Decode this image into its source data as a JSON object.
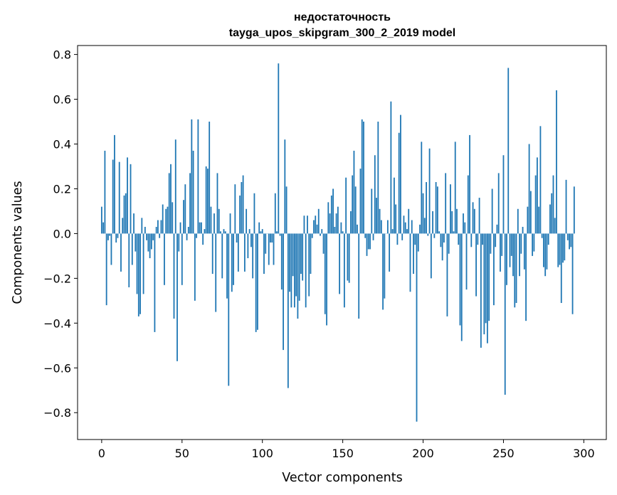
{
  "chart_data": {
    "type": "bar",
    "title_line1": "недостаточность",
    "title_line2": "tayga_upos_skipgram_300_2_2019 model",
    "xlabel": "Vector components",
    "ylabel": "Components values",
    "xlim": [
      -15,
      314
    ],
    "ylim": [
      -0.92,
      0.84
    ],
    "xticks": [
      0,
      50,
      100,
      150,
      200,
      250,
      300
    ],
    "xtick_labels": [
      "0",
      "50",
      "100",
      "150",
      "200",
      "250",
      "300"
    ],
    "yticks": [
      0.8,
      0.6,
      0.4,
      0.2,
      0.0,
      -0.2,
      -0.4,
      -0.6,
      -0.8
    ],
    "ytick_labels": [
      "0.8",
      "0.6",
      "0.4",
      "0.2",
      "0.0",
      "−0.2",
      "−0.4",
      "−0.6",
      "−0.8"
    ],
    "bar_color": "#1f77b4",
    "values": [
      0.12,
      0.05,
      0.37,
      -0.32,
      -0.03,
      -0.01,
      -0.14,
      0.33,
      0.44,
      -0.04,
      -0.02,
      0.32,
      -0.17,
      0.07,
      0.17,
      0.18,
      0.34,
      -0.24,
      0.31,
      -0.14,
      0.09,
      -0.08,
      -0.27,
      -0.37,
      -0.36,
      0.07,
      -0.27,
      0.03,
      -0.03,
      -0.08,
      -0.11,
      -0.07,
      -0.03,
      -0.44,
      0.03,
      0.06,
      -0.02,
      0.06,
      0.13,
      -0.23,
      0.11,
      0.12,
      0.27,
      0.31,
      0.14,
      -0.38,
      0.42,
      -0.57,
      -0.08,
      0.05,
      -0.23,
      0.15,
      0.22,
      -0.03,
      0.03,
      0.27,
      0.51,
      0.37,
      -0.3,
      -0.02,
      0.51,
      0.05,
      0.05,
      -0.05,
      0.02,
      0.3,
      0.29,
      0.5,
      0.12,
      -0.18,
      0.09,
      -0.35,
      0.27,
      0.11,
      0.01,
      -0.2,
      0.02,
      0.01,
      -0.29,
      -0.68,
      0.09,
      -0.26,
      -0.23,
      0.22,
      -0.04,
      -0.17,
      0.17,
      0.23,
      0.26,
      -0.17,
      0.11,
      -0.11,
      0.02,
      -0.06,
      -0.2,
      0.18,
      -0.44,
      -0.43,
      0.05,
      0.01,
      0.02,
      -0.18,
      -0.09,
      0.0,
      -0.14,
      -0.04,
      -0.04,
      -0.14,
      0.18,
      0.01,
      0.76,
      -0.01,
      -0.25,
      -0.52,
      0.42,
      0.21,
      -0.69,
      -0.26,
      -0.33,
      -0.19,
      -0.33,
      -0.28,
      -0.38,
      -0.3,
      -0.18,
      -0.21,
      0.08,
      -0.33,
      0.08,
      -0.28,
      -0.18,
      -0.02,
      0.06,
      0.08,
      0.04,
      0.11,
      -0.01,
      0.02,
      -0.09,
      -0.36,
      -0.41,
      0.14,
      0.09,
      0.17,
      0.2,
      0.03,
      0.09,
      0.12,
      -0.27,
      0.05,
      0.01,
      -0.33,
      0.25,
      -0.21,
      -0.22,
      0.1,
      0.26,
      0.37,
      0.21,
      0.04,
      -0.38,
      0.29,
      0.51,
      0.5,
      -0.02,
      -0.1,
      -0.07,
      -0.07,
      0.2,
      -0.03,
      0.35,
      0.16,
      0.5,
      0.11,
      0.06,
      -0.34,
      -0.29,
      0.0,
      0.06,
      -0.17,
      0.59,
      0.02,
      0.25,
      0.13,
      -0.05,
      0.45,
      0.53,
      -0.03,
      0.08,
      0.05,
      0.02,
      0.11,
      -0.26,
      0.06,
      -0.18,
      -0.05,
      -0.84,
      -0.08,
      0.04,
      0.41,
      0.18,
      0.07,
      0.23,
      -0.01,
      0.38,
      -0.2,
      0.1,
      -0.02,
      0.23,
      0.21,
      0.01,
      -0.06,
      -0.12,
      -0.04,
      0.27,
      -0.37,
      -0.09,
      0.22,
      0.1,
      0.01,
      0.41,
      0.11,
      -0.05,
      -0.41,
      -0.48,
      0.09,
      0.05,
      -0.25,
      0.26,
      0.44,
      -0.06,
      0.14,
      0.11,
      -0.28,
      -0.05,
      0.16,
      -0.51,
      -0.05,
      -0.45,
      -0.4,
      -0.49,
      -0.39,
      -0.09,
      0.2,
      -0.32,
      -0.06,
      0.04,
      0.27,
      -0.17,
      -0.1,
      0.35,
      -0.72,
      -0.23,
      0.74,
      -0.15,
      -0.1,
      -0.19,
      -0.33,
      -0.31,
      0.11,
      -0.19,
      -0.09,
      0.03,
      -0.16,
      -0.39,
      0.12,
      0.4,
      0.19,
      -0.1,
      -0.08,
      0.26,
      0.34,
      0.12,
      0.48,
      -0.02,
      -0.15,
      -0.19,
      -0.16,
      -0.05,
      0.13,
      0.18,
      0.26,
      0.07,
      0.64,
      -0.15,
      -0.14,
      -0.31,
      -0.13,
      -0.12,
      0.24,
      -0.03,
      -0.07,
      -0.06,
      -0.36,
      0.21
    ]
  }
}
